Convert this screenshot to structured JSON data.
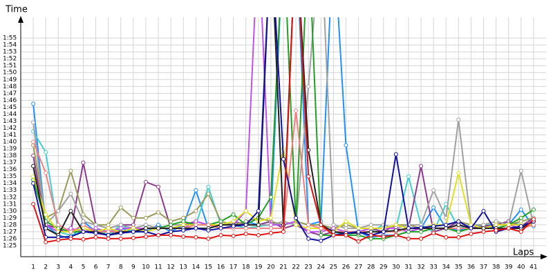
{
  "chart_data": {
    "type": "line",
    "xlabel": "Laps",
    "ylabel": "Time",
    "x": [
      1,
      2,
      3,
      4,
      5,
      6,
      7,
      8,
      9,
      10,
      11,
      12,
      13,
      14,
      15,
      16,
      17,
      18,
      19,
      20,
      21,
      22,
      23,
      24,
      25,
      26,
      27,
      28,
      29,
      30,
      31,
      32,
      33,
      34,
      35,
      36,
      37,
      38,
      39,
      40,
      41
    ],
    "xlim": [
      0,
      42
    ],
    "ylim": [
      83.4,
      118
    ],
    "grid": true,
    "yticks": [
      {
        "value": 85,
        "label": "1:25"
      },
      {
        "value": 86,
        "label": "1:26"
      },
      {
        "value": 87,
        "label": "1:27"
      },
      {
        "value": 88,
        "label": "1:28"
      },
      {
        "value": 89,
        "label": "1:29"
      },
      {
        "value": 90,
        "label": "1:30"
      },
      {
        "value": 91,
        "label": "1:31"
      },
      {
        "value": 92,
        "label": "1:32"
      },
      {
        "value": 93,
        "label": "1:33"
      },
      {
        "value": 94,
        "label": "1:34"
      },
      {
        "value": 95,
        "label": "1:35"
      },
      {
        "value": 96,
        "label": "1:36"
      },
      {
        "value": 97,
        "label": "1:37"
      },
      {
        "value": 98,
        "label": "1:38"
      },
      {
        "value": 99,
        "label": "1:39"
      },
      {
        "value": 100,
        "label": "1:40"
      },
      {
        "value": 101,
        "label": "1:41"
      },
      {
        "value": 102,
        "label": "1:42"
      },
      {
        "value": 103,
        "label": "1:43"
      },
      {
        "value": 104,
        "label": "1:44"
      },
      {
        "value": 105,
        "label": "1:45"
      },
      {
        "value": 106,
        "label": "1:46"
      },
      {
        "value": 107,
        "label": "1:47"
      },
      {
        "value": 108,
        "label": "1:48"
      },
      {
        "value": 109,
        "label": "1:49"
      },
      {
        "value": 110,
        "label": "1:50"
      },
      {
        "value": 111,
        "label": "1:51"
      },
      {
        "value": 112,
        "label": "1:52"
      },
      {
        "value": 113,
        "label": "1:53"
      },
      {
        "value": 114,
        "label": "1:54"
      },
      {
        "value": 115,
        "label": "1:55"
      }
    ],
    "series": [
      {
        "color": "#1e90ff",
        "values": [
          105.5,
          88,
          86.5,
          86,
          88.5,
          87,
          86.5,
          87.5,
          87,
          87,
          88,
          87,
          88,
          93,
          87.5,
          88,
          88,
          88.5,
          88,
          88.5,
          130,
          130,
          88,
          88.5,
          130,
          99.5,
          87,
          86.2,
          86.5,
          86.5,
          87,
          87.5,
          90.5,
          87.5,
          87.2,
          87.5,
          88,
          87.5,
          88,
          90.2,
          87.8
        ]
      },
      {
        "color": "#40d0d0",
        "values": [
          101.5,
          98.5,
          87,
          86.5,
          87,
          87.5,
          86.5,
          88,
          87,
          87.5,
          87.5,
          87.5,
          87.5,
          88,
          93.5,
          88,
          88,
          87.5,
          87.8,
          88,
          88,
          88.5,
          88,
          88,
          87,
          86.5,
          87,
          87,
          88,
          87.5,
          95,
          88,
          87,
          91,
          87.5,
          88,
          88,
          88,
          88.5,
          88,
          88
        ]
      },
      {
        "color": "#8b3a8b",
        "values": [
          98,
          88,
          87.5,
          87,
          97,
          88,
          87.5,
          88,
          88,
          94.2,
          93.5,
          87.5,
          88,
          88.5,
          88,
          88,
          88.5,
          88,
          88,
          88.5,
          87.5,
          88,
          87,
          86.5,
          87,
          86.8,
          87,
          87.5,
          87,
          88,
          87.5,
          96.5,
          87,
          87.5,
          88.5,
          87.5,
          87.8,
          88,
          88.5,
          87.8,
          89
        ]
      },
      {
        "color": "#9a9a5a",
        "values": [
          99.5,
          89,
          90,
          95.8,
          89.5,
          88,
          88,
          90.5,
          89,
          89,
          89.8,
          88.5,
          89,
          90,
          92.5,
          88.5,
          88,
          88.5,
          89,
          88.5,
          88,
          88.5,
          88,
          88,
          87.5,
          88,
          87.5,
          87.5,
          87.5,
          88,
          88,
          87.5,
          88,
          88,
          88.5,
          88,
          88,
          88.5,
          88,
          88.5,
          89
        ]
      },
      {
        "color": "#a0a0a0",
        "values": [
          102.8,
          88,
          90,
          92.5,
          88.5,
          88,
          87.5,
          88,
          87.5,
          88,
          87.5,
          88,
          88,
          88,
          88,
          88,
          88,
          88,
          88,
          88,
          88.5,
          88,
          108,
          130,
          88,
          87.5,
          87.5,
          88,
          88,
          87.5,
          88,
          88,
          93,
          89,
          103.2,
          88,
          88,
          88.5,
          88,
          95.8,
          88
        ]
      },
      {
        "color": "#c050f0",
        "values": [
          96.5,
          88,
          87,
          87.5,
          87,
          87.5,
          87,
          87.5,
          87.5,
          87.5,
          87.5,
          87.5,
          87.5,
          88.5,
          88,
          88,
          88,
          90,
          130,
          88,
          88,
          88.5,
          87,
          87,
          87.5,
          87,
          87,
          87.5,
          87.5,
          87.5,
          87,
          87.5,
          87.5,
          87.5,
          88,
          87.5,
          87.5,
          87.5,
          88,
          87.5,
          88
        ]
      },
      {
        "color": "#20a020",
        "values": [
          94.5,
          88.5,
          87.5,
          87,
          87,
          87,
          87,
          87,
          87,
          87.5,
          87.5,
          88,
          88.5,
          88,
          88,
          88.5,
          89.5,
          88,
          89,
          92,
          130,
          88,
          130,
          86.5,
          86.5,
          86.5,
          86.5,
          86,
          86,
          86.5,
          87,
          87,
          87.5,
          87.5,
          87,
          87.5,
          87.5,
          87.5,
          88,
          89,
          90.2
        ]
      },
      {
        "color": "#e0e020",
        "values": [
          95,
          89.5,
          87,
          87,
          87.5,
          87,
          87.5,
          87,
          87.5,
          87,
          87.5,
          87.5,
          88,
          88,
          88,
          88,
          88.5,
          90,
          88.5,
          89,
          99,
          88,
          87.5,
          87.5,
          87,
          88.5,
          87.5,
          87.5,
          87.5,
          88,
          87.5,
          87.5,
          88,
          88,
          95.5,
          88,
          87.5,
          88,
          88,
          88,
          88
        ]
      },
      {
        "color": "#f08080",
        "values": [
          100,
          95.5,
          88,
          87,
          88,
          87,
          87,
          87,
          87,
          87.5,
          87.5,
          87.5,
          87.5,
          88,
          88,
          87.5,
          87.5,
          87.5,
          87.5,
          87.5,
          87.5,
          104.5,
          88,
          87.5,
          87,
          87,
          87,
          87,
          87,
          87,
          87.5,
          87.5,
          87.5,
          87.5,
          87.5,
          87.5,
          87.5,
          87.5,
          87.5,
          87.5,
          88
        ]
      },
      {
        "color": "#202020",
        "values": [
          96.5,
          87.5,
          86.5,
          90,
          87,
          87,
          86.5,
          87,
          87,
          87.5,
          87.5,
          87.5,
          87.5,
          87.5,
          87.5,
          88,
          88,
          88,
          88,
          130,
          88,
          130,
          98.8,
          88,
          87,
          86.8,
          86.8,
          87,
          87,
          87.2,
          87.5,
          87.5,
          87.5,
          87.5,
          88,
          87.5,
          87.5,
          87.5,
          87.5,
          87.5,
          88.5
        ]
      },
      {
        "color": "#1010a0",
        "values": [
          94,
          86.2,
          86.2,
          86.3,
          87,
          86.8,
          86.5,
          86.8,
          87,
          87,
          86.5,
          87,
          87.2,
          87.5,
          87.2,
          87.5,
          87.8,
          88,
          90,
          130,
          97.5,
          89,
          86,
          85.7,
          86.5,
          86.8,
          87,
          86.5,
          87,
          98.2,
          87.5,
          87.6,
          87.8,
          88,
          88.5,
          87.5,
          90,
          87,
          87.5,
          87.8,
          88.5
        ]
      },
      {
        "color": "#e01010",
        "values": [
          91,
          85.5,
          85.8,
          86,
          85.9,
          86.2,
          86,
          86,
          86.1,
          86.3,
          86.5,
          86.5,
          86.3,
          86.2,
          86,
          86.5,
          86.4,
          86.7,
          86.5,
          86.8,
          87,
          130,
          95,
          88,
          86.5,
          86.5,
          85.6,
          86.5,
          86.3,
          86.5,
          86,
          86,
          86.8,
          86.2,
          86.2,
          86.7,
          87,
          87.2,
          87.5,
          87,
          88.8
        ]
      }
    ]
  }
}
